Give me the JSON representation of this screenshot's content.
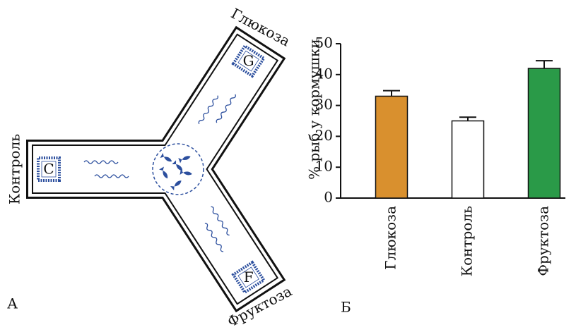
{
  "panel_a": {
    "label": "А",
    "arms": [
      {
        "name": "Глюкоза",
        "marker": "G"
      },
      {
        "name": "Контроль",
        "marker": "C"
      },
      {
        "name": "Фруктоза",
        "marker": "F"
      }
    ]
  },
  "panel_b_label": "Б",
  "chart_data": {
    "type": "bar",
    "ylabel": "% рыб у кормушки",
    "categories": [
      "Глюкоза",
      "Контроль",
      "Фруктоза"
    ],
    "values": [
      33,
      25,
      42
    ],
    "errors": [
      1.8,
      1.2,
      2.5
    ],
    "colors": [
      "#d9902e",
      "#ffffff",
      "#2a9a48"
    ],
    "ylim": [
      0,
      50
    ],
    "yticks": [
      0,
      10,
      20,
      30,
      40,
      50
    ]
  }
}
